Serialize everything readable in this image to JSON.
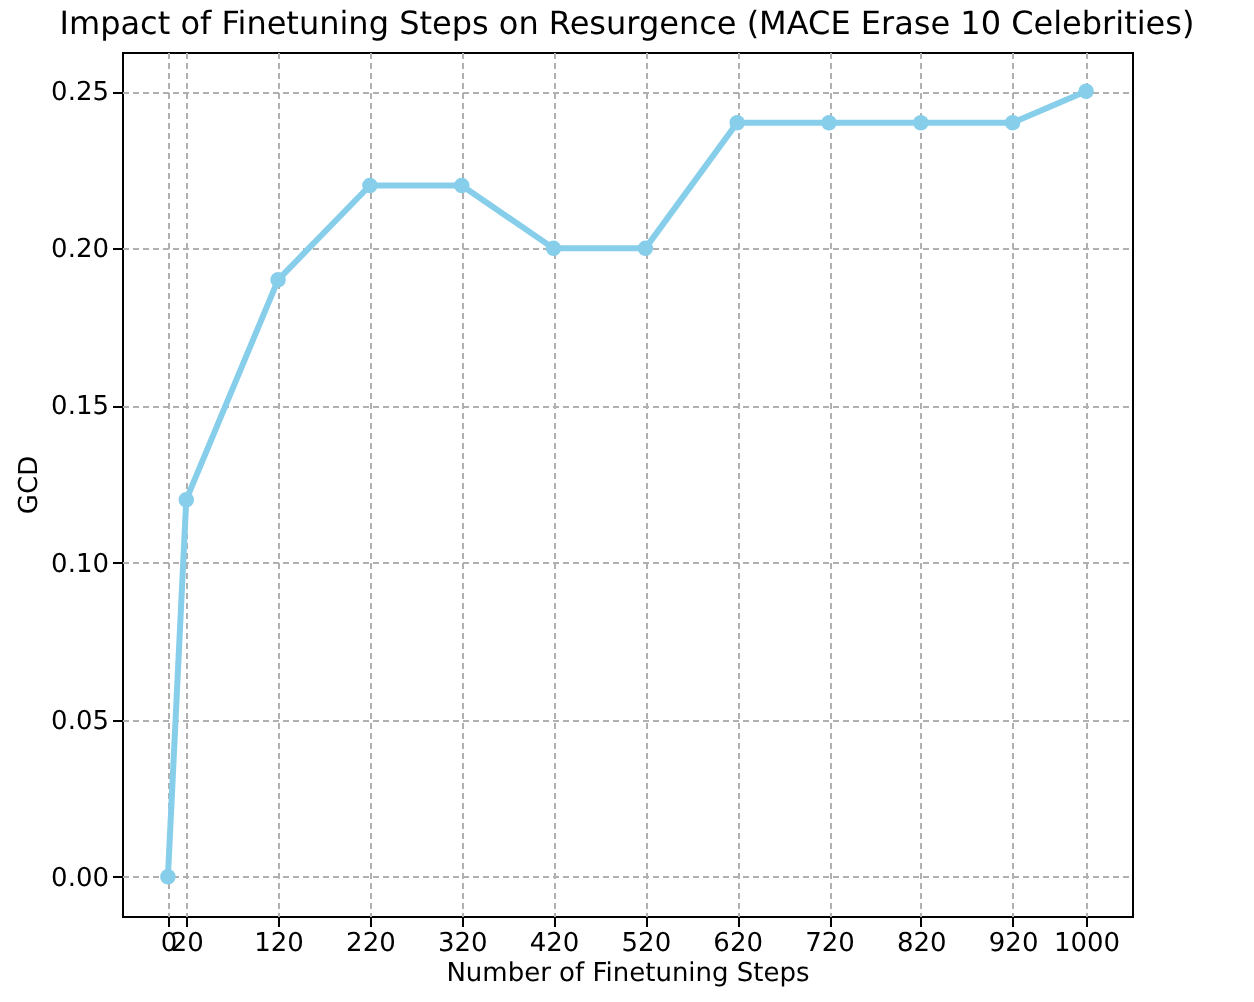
{
  "chart_data": {
    "type": "line",
    "title": "Impact of Finetuning Steps on Resurgence (MACE Erase 10 Celebrities)",
    "xlabel": "Number of Finetuning Steps",
    "ylabel": "GCD",
    "x": [
      0,
      20,
      120,
      220,
      320,
      420,
      520,
      620,
      720,
      820,
      920,
      1000
    ],
    "series": [
      {
        "color": "#87ceeb",
        "values": [
          0,
          0.12,
          0.19,
          0.22,
          0.22,
          0.2,
          0.2,
          0.24,
          0.24,
          0.24,
          0.24,
          0.25
        ]
      }
    ],
    "xlim": [
      -50,
      1050
    ],
    "xticks": [
      0,
      20,
      120,
      220,
      320,
      420,
      520,
      620,
      720,
      820,
      920,
      1000
    ],
    "ylim": [
      -0.0125,
      0.2625
    ],
    "yticks": [
      {
        "value": 0,
        "label": "0.00"
      },
      {
        "value": 0.05,
        "label": "0.05"
      },
      {
        "value": 0.1,
        "label": "0.10"
      },
      {
        "value": 0.15,
        "label": "0.15"
      },
      {
        "value": 0.2,
        "label": "0.20"
      },
      {
        "value": 0.25,
        "label": "0.25"
      }
    ],
    "grid": true,
    "marker": "circle",
    "line_style": "solid"
  }
}
